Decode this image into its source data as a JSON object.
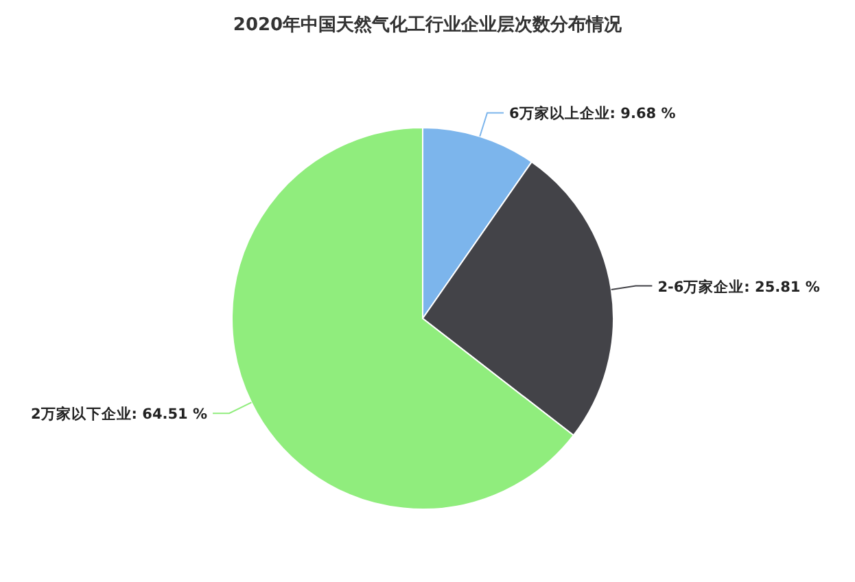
{
  "chart_data": {
    "type": "pie",
    "title": "2020年中国天然气化工行业企业层次数分布情况",
    "categories": [
      "6万家以上企业",
      "2-6万家企业",
      "2万家以下企业"
    ],
    "values": [
      9.68,
      25.81,
      64.51
    ],
    "value_labels": [
      "9.68 %",
      "25.81 %",
      "64.51 %"
    ],
    "colors": [
      "#7cb5ec",
      "#434348",
      "#90ed7d"
    ],
    "legend": false
  }
}
